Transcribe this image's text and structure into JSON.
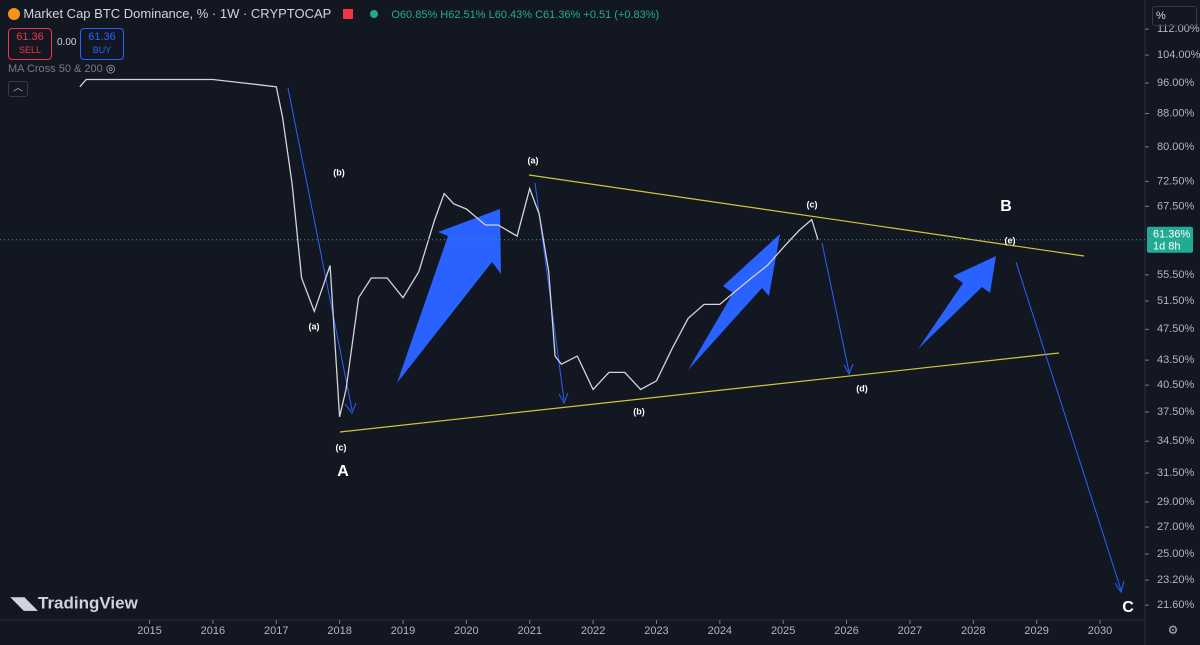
{
  "header": {
    "symbol": "Market Cap BTC Dominance, % · 1W · CRYPTOCAP",
    "ohlc": "O60.85% H62.51% L60.43% C61.36% +0.51 (+0.83%)",
    "sell_price": "61.36",
    "sell_label": "SELL",
    "spread": "0.00",
    "buy_price": "61.36",
    "buy_label": "BUY",
    "indicator": "MA Cross 50 & 200",
    "scale_button": "%",
    "logo": "TradingView"
  },
  "chart_data": {
    "type": "line",
    "log_scale": true,
    "color": "#d1d4dc",
    "x": [
      2013.9,
      2014.0,
      2014.5,
      2015.0,
      2015.5,
      2016.0,
      2016.5,
      2017.0,
      2017.1,
      2017.25,
      2017.4,
      2017.6,
      2017.85,
      2018.0,
      2018.1,
      2018.3,
      2018.5,
      2018.75,
      2019.0,
      2019.25,
      2019.5,
      2019.65,
      2019.8,
      2020.0,
      2020.3,
      2020.5,
      2020.8,
      2021.0,
      2021.15,
      2021.3,
      2021.4,
      2021.5,
      2021.75,
      2022.0,
      2022.25,
      2022.5,
      2022.75,
      2023.0,
      2023.25,
      2023.5,
      2023.75,
      2024.0,
      2024.25,
      2024.5,
      2024.75,
      2025.0,
      2025.25,
      2025.45,
      2025.55
    ],
    "values": [
      95,
      97,
      97,
      97,
      97,
      97,
      96,
      95,
      87,
      72,
      55,
      50,
      57,
      37,
      40,
      52,
      55,
      55,
      52,
      56,
      65,
      70,
      68,
      67,
      64,
      64,
      62,
      71,
      66,
      56,
      44,
      43,
      44,
      40,
      42,
      42,
      40,
      41,
      45,
      49,
      51,
      51,
      53,
      55,
      57,
      60,
      63,
      65,
      61.36
    ],
    "last_value": 61.36,
    "last_value_label": "61.36%",
    "countdown": "1d 8h",
    "xlim": [
      2012.64,
      2030.71
    ],
    "xticks": [
      2015,
      2016,
      2017,
      2018,
      2019,
      2020,
      2021,
      2022,
      2023,
      2024,
      2025,
      2026,
      2027,
      2028,
      2029,
      2030
    ],
    "ylim": [
      20.7,
      120
    ],
    "yticks": [
      {
        "value": 112,
        "label": "112.00%"
      },
      {
        "value": 104,
        "label": "104.00%"
      },
      {
        "value": 96,
        "label": "96.00%"
      },
      {
        "value": 88,
        "label": "88.00%"
      },
      {
        "value": 80,
        "label": "80.00%"
      },
      {
        "value": 72.5,
        "label": "72.50%"
      },
      {
        "value": 67.5,
        "label": "67.50%"
      },
      {
        "value": 55.5,
        "label": "55.50%"
      },
      {
        "value": 51.5,
        "label": "51.50%"
      },
      {
        "value": 47.5,
        "label": "47.50%"
      },
      {
        "value": 43.5,
        "label": "43.50%"
      },
      {
        "value": 40.5,
        "label": "40.50%"
      },
      {
        "value": 37.5,
        "label": "37.50%"
      },
      {
        "value": 34.5,
        "label": "34.50%"
      },
      {
        "value": 31.5,
        "label": "31.50%"
      },
      {
        "value": 29,
        "label": "29.00%"
      },
      {
        "value": 27,
        "label": "27.00%"
      },
      {
        "value": 25,
        "label": "25.00%"
      },
      {
        "value": 23.2,
        "label": "23.20%"
      },
      {
        "value": 21.6,
        "label": "21.60%"
      }
    ],
    "annotations": [
      "(b)",
      "(a)",
      "(c)",
      "A",
      "(a)",
      "(b)",
      "(c)",
      "(d)",
      "(e)",
      "B",
      "C"
    ]
  }
}
